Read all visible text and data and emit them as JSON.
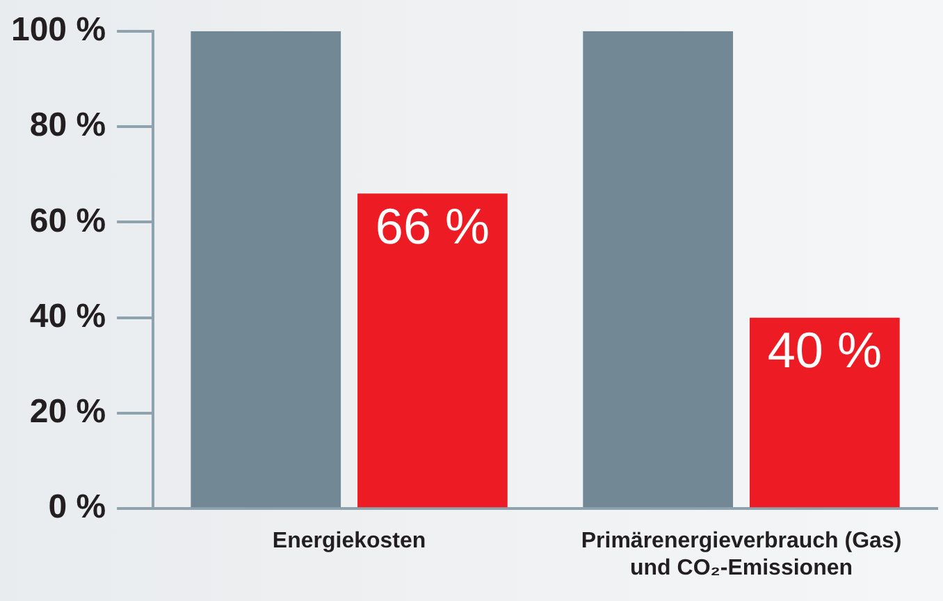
{
  "chart_data": {
    "type": "bar",
    "categories": [
      "Energiekosten",
      "Primärenergieverbrauch (Gas) und CO₂-Emissionen"
    ],
    "series": [
      {
        "color": "#728894",
        "values": [
          100,
          100
        ]
      },
      {
        "color": "#ed1c24",
        "values": [
          66,
          40
        ],
        "value_labels": [
          "66 %",
          "40 %"
        ]
      }
    ],
    "ylim": [
      0,
      100
    ],
    "yticks": [
      {
        "value": 0,
        "label": "0 %"
      },
      {
        "value": 20,
        "label": "20 %"
      },
      {
        "value": 40,
        "label": "40 %"
      },
      {
        "value": 60,
        "label": "60 %"
      },
      {
        "value": 80,
        "label": "80 %"
      },
      {
        "value": 100,
        "label": "100 %"
      }
    ],
    "grid": false,
    "legend": false
  }
}
